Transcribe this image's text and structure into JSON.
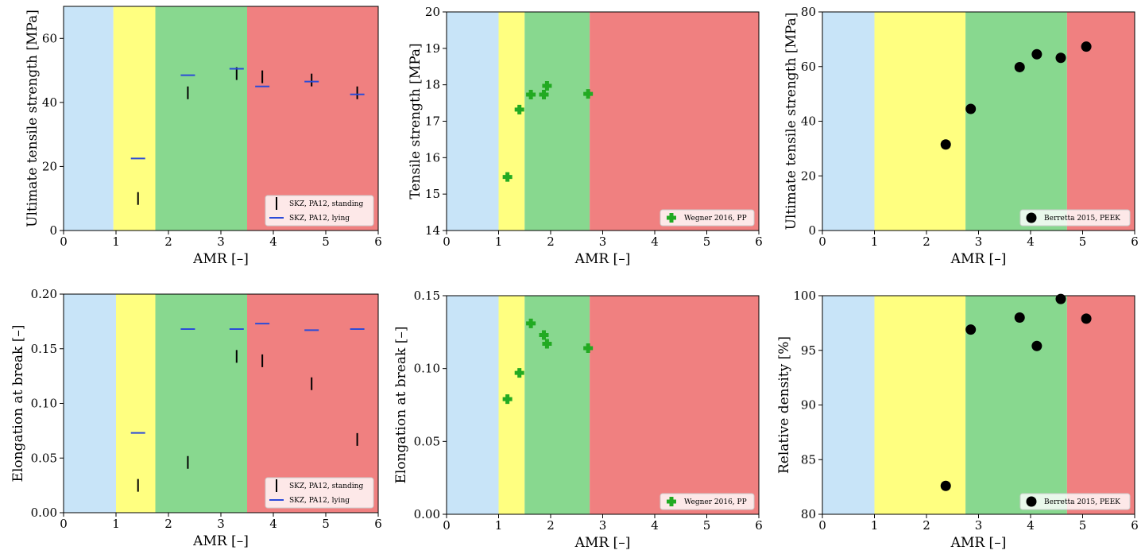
{
  "zone_colors": [
    "#c8e4f8",
    "#ffff80",
    "#88d88f",
    "#f08080"
  ],
  "chart_data": [
    {
      "type": "scatter",
      "xlabel": "AMR [–]",
      "ylabel": "Ultimate tensile strength [MPa]",
      "xlim": [
        0,
        6
      ],
      "ylim": [
        0,
        70
      ],
      "xticks": [
        0,
        1,
        2,
        3,
        4,
        5,
        6
      ],
      "xtick_labels": [
        "0",
        "1",
        "2",
        "3",
        "4",
        "5",
        "6"
      ],
      "yticks": [
        0,
        20,
        40,
        60
      ],
      "ytick_labels": [
        "0",
        "20",
        "40",
        "60"
      ],
      "zones": [
        0.95,
        1.75,
        3.5
      ],
      "legend": "bottom-right",
      "series": [
        {
          "name": "SKZ, PA12, standing",
          "marker": "vline",
          "color": "#000000",
          "x": [
            1.42,
            2.37,
            3.3,
            3.79,
            4.73,
            5.6
          ],
          "y": [
            10,
            43,
            49,
            48,
            47,
            43
          ]
        },
        {
          "name": "SKZ, PA12, lying",
          "marker": "hline",
          "color": "#2b4bd8",
          "x": [
            1.42,
            2.37,
            3.3,
            3.79,
            4.73,
            5.6
          ],
          "y": [
            22.5,
            48.5,
            50.5,
            45,
            46.5,
            42.5
          ]
        }
      ]
    },
    {
      "type": "scatter",
      "xlabel": "AMR [–]",
      "ylabel": "Tensile strength [MPa]",
      "xlim": [
        0,
        6
      ],
      "ylim": [
        14,
        20
      ],
      "xticks": [
        0,
        1,
        2,
        3,
        4,
        5,
        6
      ],
      "xtick_labels": [
        "0",
        "1",
        "2",
        "3",
        "4",
        "5",
        "6"
      ],
      "yticks": [
        14,
        15,
        16,
        17,
        18,
        19,
        20
      ],
      "ytick_labels": [
        "14",
        "15",
        "16",
        "17",
        "18",
        "19",
        "20"
      ],
      "zones": [
        1.0,
        1.5,
        2.75
      ],
      "legend": "bottom-right",
      "series": [
        {
          "name": "Wegner 2016, PP",
          "marker": "plus",
          "color": "#22aa22",
          "x": [
            1.17,
            1.4,
            1.62,
            1.87,
            1.93,
            2.72
          ],
          "y": [
            15.47,
            17.32,
            17.73,
            17.73,
            17.97,
            17.75
          ]
        }
      ]
    },
    {
      "type": "scatter",
      "xlabel": "AMR [–]",
      "ylabel": "Ultimate tensile strength [MPa]",
      "xlim": [
        0,
        6
      ],
      "ylim": [
        0,
        80
      ],
      "xticks": [
        0,
        1,
        2,
        3,
        4,
        5,
        6
      ],
      "xtick_labels": [
        "0",
        "1",
        "2",
        "3",
        "4",
        "5",
        "6"
      ],
      "yticks": [
        0,
        20,
        40,
        60,
        80
      ],
      "ytick_labels": [
        "0",
        "20",
        "40",
        "60",
        "80"
      ],
      "zones": [
        1.0,
        2.75,
        4.7
      ],
      "legend": "bottom-right",
      "series": [
        {
          "name": "Berretta 2015, PEEK",
          "marker": "circle",
          "color": "#000000",
          "x": [
            2.37,
            2.85,
            3.79,
            4.12,
            4.58,
            5.07
          ],
          "y": [
            31.5,
            44.5,
            59.8,
            64.5,
            63.2,
            67.3
          ]
        }
      ]
    },
    {
      "type": "scatter",
      "xlabel": "AMR [–]",
      "ylabel": "Elongation at break [–]",
      "xlim": [
        0,
        6
      ],
      "ylim": [
        0,
        0.2
      ],
      "xticks": [
        0,
        1,
        2,
        3,
        4,
        5,
        6
      ],
      "xtick_labels": [
        "0",
        "1",
        "2",
        "3",
        "4",
        "5",
        "6"
      ],
      "yticks": [
        0,
        0.05,
        0.1,
        0.15,
        0.2
      ],
      "ytick_labels": [
        "0.00",
        "0.05",
        "0.10",
        "0.15",
        "0.20"
      ],
      "zones": [
        1.0,
        1.75,
        3.5
      ],
      "legend": "bottom-right",
      "series": [
        {
          "name": "SKZ, PA12, standing",
          "marker": "vline",
          "color": "#000000",
          "x": [
            1.42,
            2.37,
            3.3,
            3.79,
            4.73,
            5.6
          ],
          "y": [
            0.025,
            0.046,
            0.143,
            0.139,
            0.118,
            0.067
          ]
        },
        {
          "name": "SKZ, PA12, lying",
          "marker": "hline",
          "color": "#2b4bd8",
          "x": [
            1.42,
            2.37,
            3.3,
            3.79,
            4.73,
            5.6
          ],
          "y": [
            0.073,
            0.168,
            0.168,
            0.173,
            0.167,
            0.168
          ]
        }
      ]
    },
    {
      "type": "scatter",
      "xlabel": "AMR [–]",
      "ylabel": "Elongation at break [–]",
      "xlim": [
        0,
        6
      ],
      "ylim": [
        0,
        0.15
      ],
      "xticks": [
        0,
        1,
        2,
        3,
        4,
        5,
        6
      ],
      "xtick_labels": [
        "0",
        "1",
        "2",
        "3",
        "4",
        "5",
        "6"
      ],
      "yticks": [
        0,
        0.05,
        0.1,
        0.15
      ],
      "ytick_labels": [
        "0.00",
        "0.05",
        "0.10",
        "0.15"
      ],
      "zones": [
        1.0,
        1.5,
        2.75
      ],
      "legend": "bottom-right",
      "series": [
        {
          "name": "Wegner 2016, PP",
          "marker": "plus",
          "color": "#22aa22",
          "x": [
            1.17,
            1.4,
            1.62,
            1.87,
            1.93,
            2.72
          ],
          "y": [
            0.079,
            0.097,
            0.131,
            0.123,
            0.117,
            0.114
          ]
        }
      ]
    },
    {
      "type": "scatter",
      "xlabel": "AMR [–]",
      "ylabel": "Relative density [%]",
      "xlim": [
        0,
        6
      ],
      "ylim": [
        80,
        100
      ],
      "xticks": [
        0,
        1,
        2,
        3,
        4,
        5,
        6
      ],
      "xtick_labels": [
        "0",
        "1",
        "2",
        "3",
        "4",
        "5",
        "6"
      ],
      "yticks": [
        80,
        85,
        90,
        95,
        100
      ],
      "ytick_labels": [
        "80",
        "85",
        "90",
        "95",
        "100"
      ],
      "zones": [
        1.0,
        2.75,
        4.7
      ],
      "legend": "bottom-right",
      "series": [
        {
          "name": "Berretta 2015, PEEK",
          "marker": "circle",
          "color": "#000000",
          "x": [
            2.37,
            2.85,
            3.79,
            4.12,
            4.58,
            5.07
          ],
          "y": [
            82.6,
            96.9,
            98.0,
            95.4,
            99.7,
            97.9
          ]
        }
      ]
    }
  ]
}
